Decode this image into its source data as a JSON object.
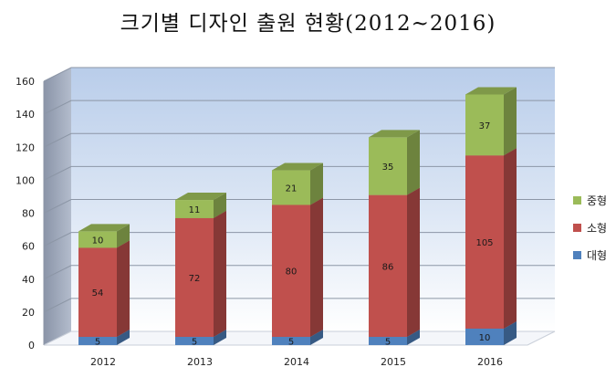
{
  "chart_data": {
    "type": "bar",
    "stacked": true,
    "title": "크기별 디자인 출원 현황(2012~2016)",
    "categories": [
      "2012",
      "2013",
      "2014",
      "2015",
      "2016"
    ],
    "series": [
      {
        "name": "대형",
        "values": [
          5,
          5,
          5,
          5,
          10
        ],
        "color": "#4f81bd"
      },
      {
        "name": "소형",
        "values": [
          54,
          72,
          80,
          86,
          105
        ],
        "color": "#c0504d"
      },
      {
        "name": "중형",
        "values": [
          10,
          11,
          21,
          35,
          37
        ],
        "color": "#9bbb59"
      }
    ],
    "ylim": [
      0,
      160
    ],
    "yticks": [
      0,
      20,
      40,
      60,
      80,
      100,
      120,
      140,
      160
    ],
    "grid": true,
    "legend_position": "right"
  }
}
